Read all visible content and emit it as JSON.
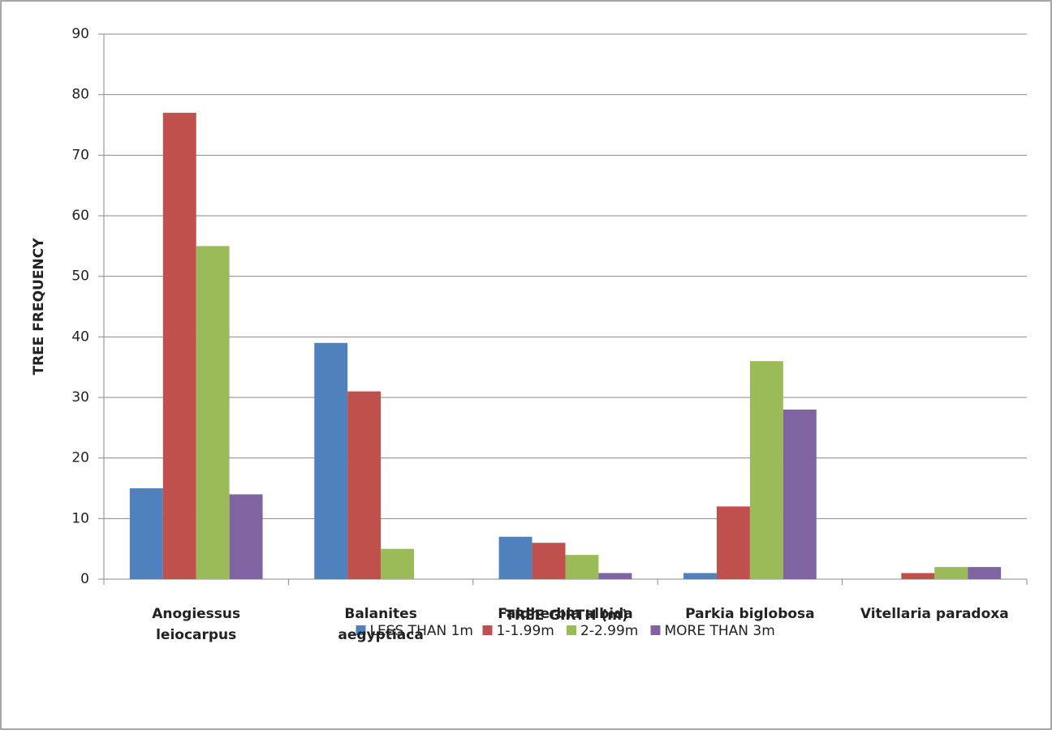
{
  "chart_data": {
    "type": "bar",
    "categories": [
      "Anogiessus leiocarpus",
      "Balanites aegyptiaca",
      "Faidherbia albida",
      "Parkia biglobosa",
      "Vitellaria paradoxa"
    ],
    "series": [
      {
        "name": "LESS THAN 1m",
        "color": "#4f81bd",
        "values": [
          15,
          39,
          7,
          1,
          0
        ]
      },
      {
        "name": "1-1.99m",
        "color": "#c0504d",
        "values": [
          77,
          31,
          6,
          12,
          1
        ]
      },
      {
        "name": "2-2.99m",
        "color": "#9bbb59",
        "values": [
          55,
          5,
          4,
          36,
          2
        ]
      },
      {
        "name": "MORE THAN 3m",
        "color": "#8064a2",
        "values": [
          14,
          0,
          1,
          28,
          2
        ]
      }
    ],
    "y_label": "TREE FREQUENCY",
    "x_label": "TREE GIRTH (m)",
    "ylim": [
      0,
      90
    ],
    "yticks": [
      0,
      10,
      20,
      30,
      40,
      50,
      60,
      70,
      80,
      90
    ],
    "grid": true,
    "legend": "bottom"
  }
}
